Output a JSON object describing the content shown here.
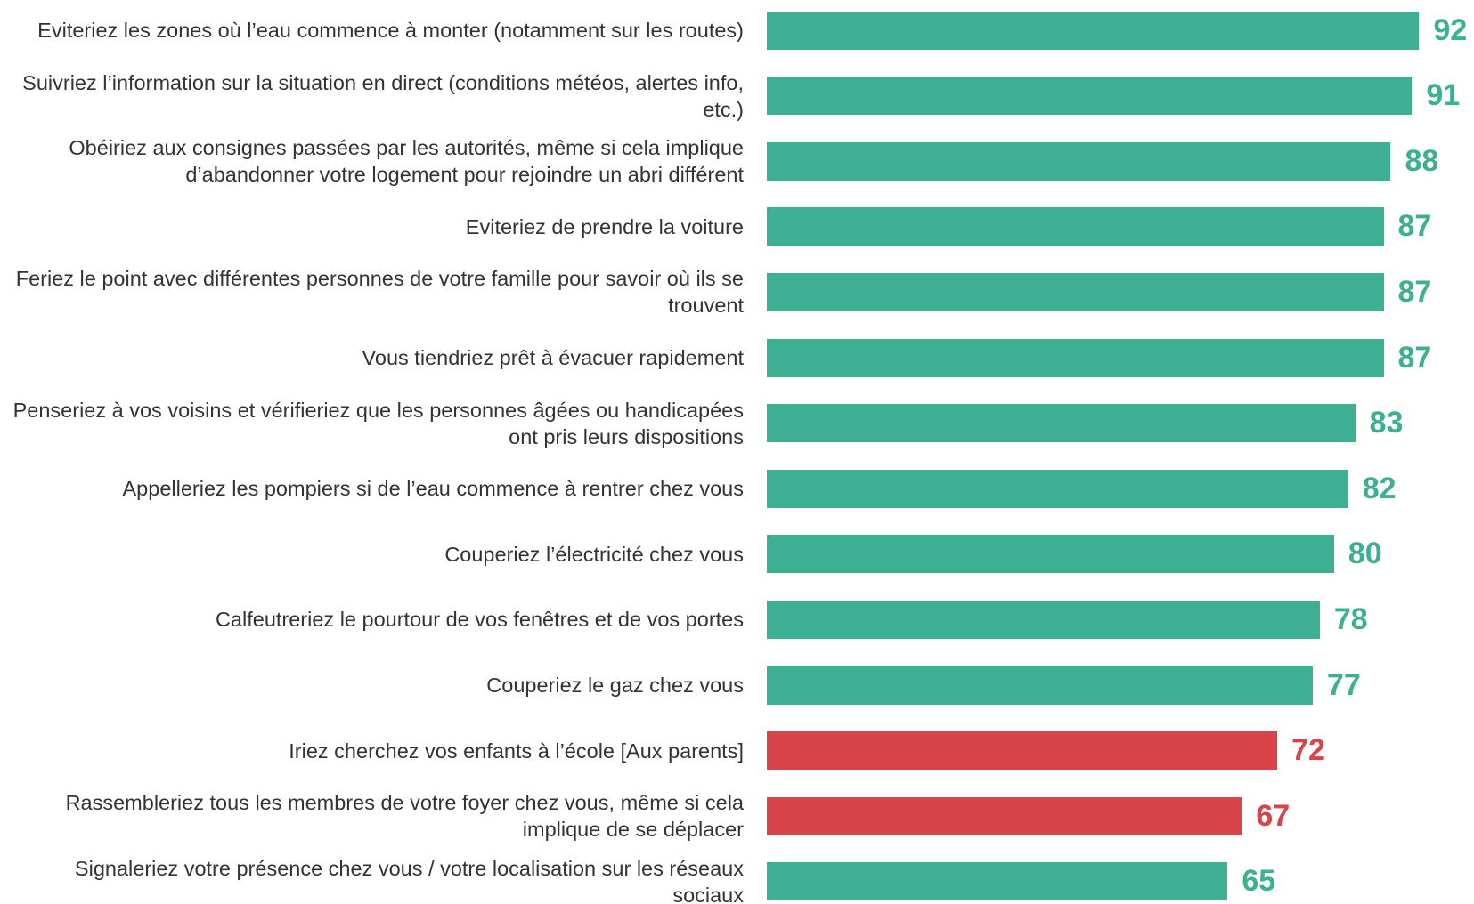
{
  "chart_data": {
    "type": "bar",
    "orientation": "horizontal",
    "categories": [
      "Eviteriez les zones où l’eau commence à monter (notamment sur les routes)",
      "Suivriez l’information sur la situation en direct (conditions météos, alertes info, etc.)",
      "Obéiriez aux consignes passées par les autorités, même si cela implique d’abandonner votre logement pour rejoindre un abri différent",
      "Eviteriez de prendre la voiture",
      "Feriez le point avec différentes personnes de votre famille pour savoir où ils se trouvent",
      "Vous tiendriez prêt à évacuer rapidement",
      "Penseriez à vos voisins et vérifieriez que les personnes âgées ou handicapées ont pris leurs dispositions",
      "Appelleriez les pompiers si de l’eau commence à rentrer chez vous",
      "Couperiez l’électricité chez vous",
      "Calfeutreriez le pourtour de vos fenêtres et de vos portes",
      "Couperiez le gaz chez vous",
      "Iriez cherchez vos enfants à l’école [Aux parents]",
      "Rassembleriez tous les membres de votre foyer chez vous, même si cela implique de se déplacer",
      "Signaleriez votre présence chez vous / votre localisation sur les réseaux sociaux"
    ],
    "values": [
      92,
      91,
      88,
      87,
      87,
      87,
      83,
      82,
      80,
      78,
      77,
      72,
      67,
      65
    ],
    "colors": [
      "#3daf93",
      "#3daf93",
      "#3daf93",
      "#3daf93",
      "#3daf93",
      "#3daf93",
      "#3daf93",
      "#3daf93",
      "#3daf93",
      "#3daf93",
      "#3daf93",
      "#d9434a",
      "#d9434a",
      "#3daf93"
    ]
  }
}
